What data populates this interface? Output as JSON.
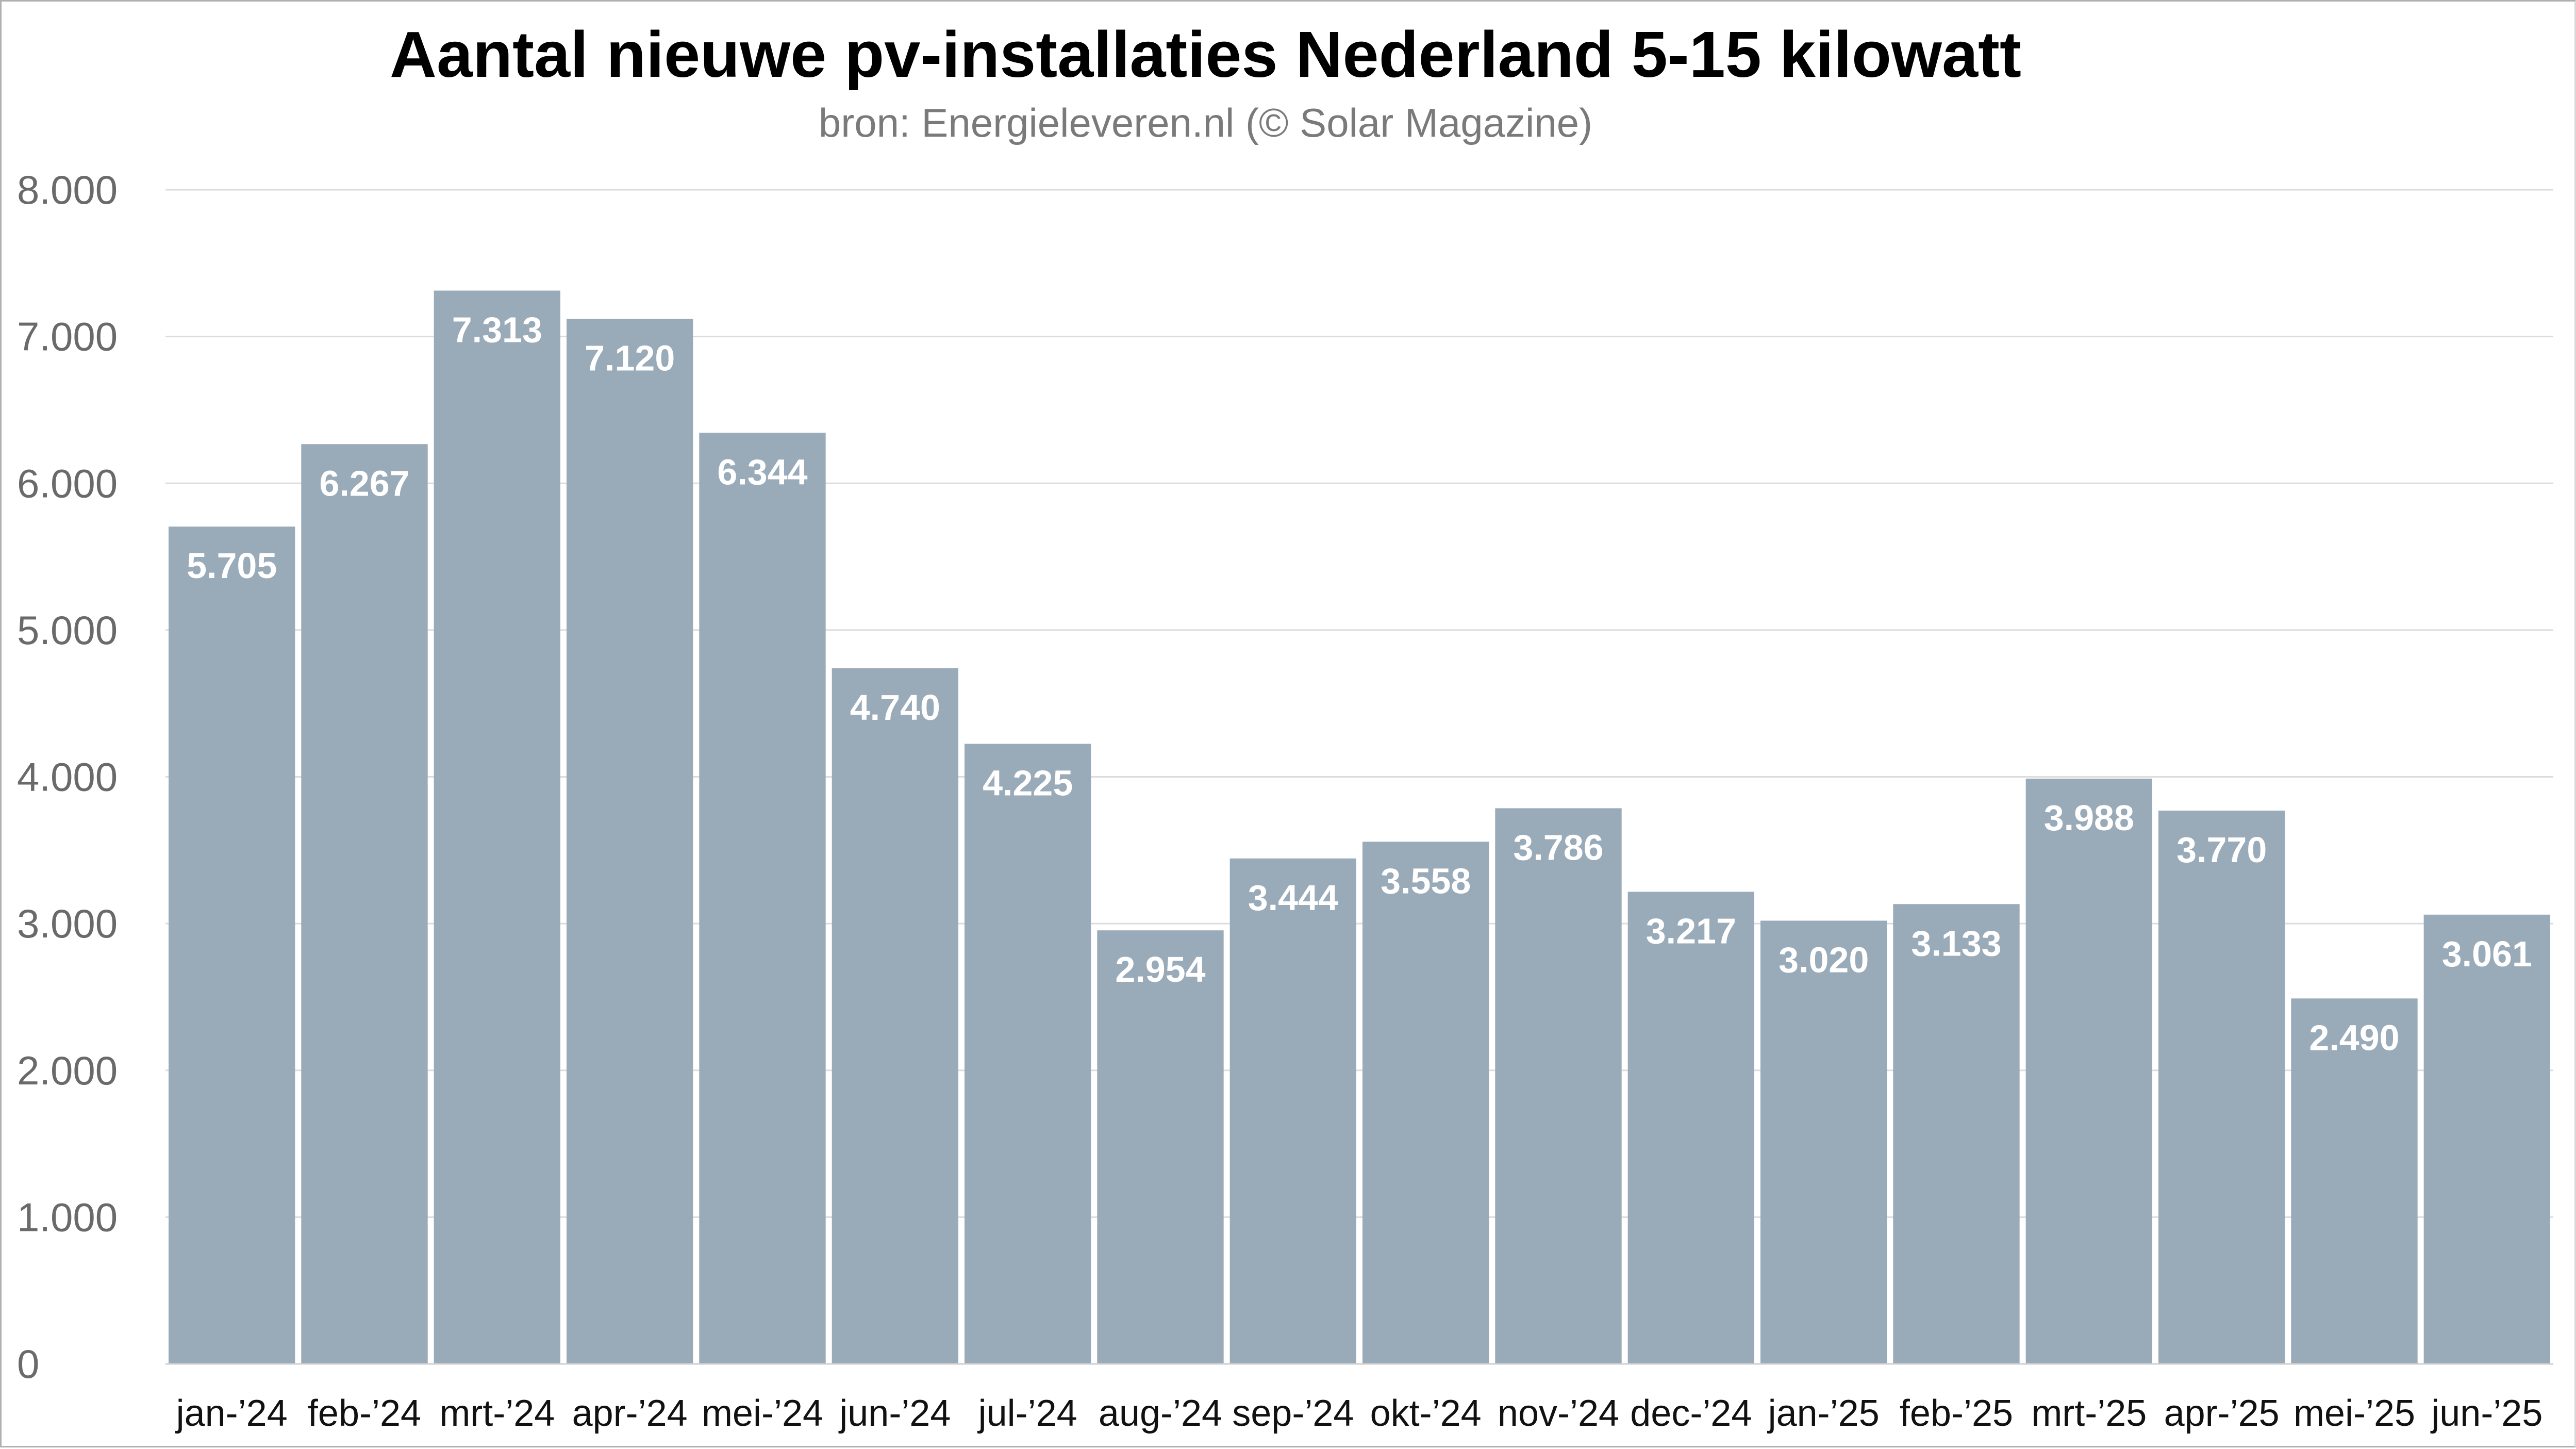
{
  "chart_data": {
    "type": "bar",
    "title": "Aantal nieuwe pv-installaties Nederland 5-15 kilowatt",
    "subtitle": "bron: Energieleveren.nl (© Solar Magazine)",
    "xlabel": "",
    "ylabel": "",
    "categories": [
      "jan-’24",
      "feb-’24",
      "mrt-’24",
      "apr-’24",
      "mei-’24",
      "jun-’24",
      "jul-’24",
      "aug-’24",
      "sep-’24",
      "okt-’24",
      "nov-’24",
      "dec-’24",
      "jan-’25",
      "feb-’25",
      "mrt-’25",
      "apr-’25",
      "mei-’25",
      "jun-’25"
    ],
    "values": [
      5705,
      6267,
      7313,
      7120,
      6344,
      4740,
      4225,
      2954,
      3444,
      3558,
      3786,
      3217,
      3020,
      3133,
      3988,
      3770,
      2490,
      3061
    ],
    "value_labels": [
      "5.705",
      "6.267",
      "7.313",
      "7.120",
      "6.344",
      "4.740",
      "4.225",
      "2.954",
      "3.444",
      "3.558",
      "3.786",
      "3.217",
      "3.020",
      "3.133",
      "3.988",
      "3.770",
      "2.490",
      "3.061"
    ],
    "ylim": [
      0,
      8000
    ],
    "yticks": [
      0,
      1000,
      2000,
      3000,
      4000,
      5000,
      6000,
      7000,
      8000
    ],
    "ytick_labels": [
      "0",
      "1.000",
      "2.000",
      "3.000",
      "4.000",
      "5.000",
      "6.000",
      "7.000",
      "8.000"
    ],
    "grid": true,
    "legend": "none",
    "colors": {
      "bar": "#99aab9",
      "grid": "#dcdcdc",
      "label": "#ffffff"
    }
  }
}
